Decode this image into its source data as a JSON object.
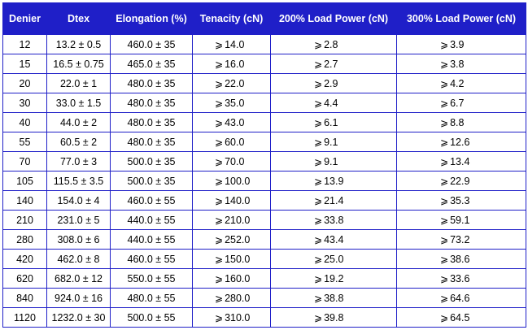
{
  "table": {
    "headers": [
      "Denier",
      "Dtex",
      "Elongation (%)",
      "Tenacity (cN)",
      "200% Load Power (cN)",
      "300% Load Power (cN)"
    ],
    "ge_symbol": "⩾",
    "rows": [
      {
        "denier": "12",
        "dtex": "13.2 ± 0.5",
        "elongation": "460.0 ± 35",
        "tenacity": "14.0",
        "load200": "2.8",
        "load300": "3.9"
      },
      {
        "denier": "15",
        "dtex": "16.5 ± 0.75",
        "elongation": "465.0 ± 35",
        "tenacity": "16.0",
        "load200": "2.7",
        "load300": "3.8"
      },
      {
        "denier": "20",
        "dtex": "22.0 ± 1",
        "elongation": "480.0 ± 35",
        "tenacity": "22.0",
        "load200": "2.9",
        "load300": "4.2"
      },
      {
        "denier": "30",
        "dtex": "33.0 ± 1.5",
        "elongation": "480.0 ± 35",
        "tenacity": "35.0",
        "load200": "4.4",
        "load300": "6.7"
      },
      {
        "denier": "40",
        "dtex": "44.0 ± 2",
        "elongation": "480.0 ± 35",
        "tenacity": "43.0",
        "load200": "6.1",
        "load300": "8.8"
      },
      {
        "denier": "55",
        "dtex": "60.5 ± 2",
        "elongation": "480.0 ± 35",
        "tenacity": "60.0",
        "load200": "9.1",
        "load300": "12.6"
      },
      {
        "denier": "70",
        "dtex": "77.0 ± 3",
        "elongation": "500.0 ± 35",
        "tenacity": "70.0",
        "load200": "9.1",
        "load300": "13.4"
      },
      {
        "denier": "105",
        "dtex": "115.5 ± 3.5",
        "elongation": "500.0 ± 35",
        "tenacity": "100.0",
        "load200": "13.9",
        "load300": "22.9"
      },
      {
        "denier": "140",
        "dtex": "154.0 ± 4",
        "elongation": "460.0 ± 55",
        "tenacity": "140.0",
        "load200": "21.4",
        "load300": "35.3"
      },
      {
        "denier": "210",
        "dtex": "231.0 ± 5",
        "elongation": "440.0 ± 55",
        "tenacity": "210.0",
        "load200": "33.8",
        "load300": "59.1"
      },
      {
        "denier": "280",
        "dtex": "308.0 ± 6",
        "elongation": "440.0 ± 55",
        "tenacity": "252.0",
        "load200": "43.4",
        "load300": "73.2"
      },
      {
        "denier": "420",
        "dtex": "462.0 ± 8",
        "elongation": "460.0 ± 55",
        "tenacity": "150.0",
        "load200": "25.0",
        "load300": "38.6"
      },
      {
        "denier": "620",
        "dtex": "682.0 ± 12",
        "elongation": "550.0 ± 55",
        "tenacity": "160.0",
        "load200": "19.2",
        "load300": "33.6"
      },
      {
        "denier": "840",
        "dtex": "924.0 ± 16",
        "elongation": "480.0 ± 55",
        "tenacity": "280.0",
        "load200": "38.8",
        "load300": "64.6"
      },
      {
        "denier": "1120",
        "dtex": "1232.0 ± 30",
        "elongation": "500.0 ± 55",
        "tenacity": "310.0",
        "load200": "39.8",
        "load300": "64.5"
      }
    ]
  },
  "colors": {
    "header_bg": "#1f1fc8",
    "header_text": "#ffffff",
    "border": "#1f1fc8"
  }
}
